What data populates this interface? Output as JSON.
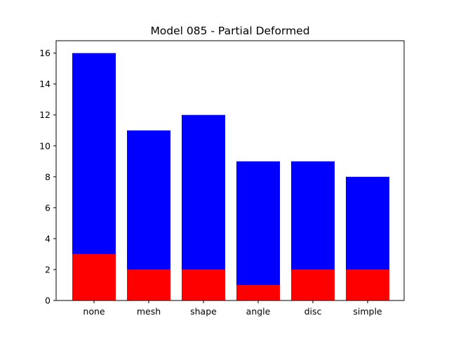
{
  "chart_data": {
    "type": "bar",
    "stacked": true,
    "title": "Model 085 - Partial Deformed",
    "xlabel": "",
    "ylabel": "",
    "categories": [
      "none",
      "mesh",
      "shape",
      "angle",
      "disc",
      "simple"
    ],
    "series": [
      {
        "values": [
          3,
          2,
          2,
          1,
          2,
          2
        ],
        "color": "#ff0000"
      },
      {
        "values": [
          13,
          9,
          10,
          8,
          7,
          6
        ],
        "color": "#0000ff"
      }
    ],
    "totals": [
      16,
      11,
      12,
      9,
      9,
      8
    ],
    "ylim": [
      0,
      16.8
    ],
    "yticks": [
      0,
      2,
      4,
      6,
      8,
      10,
      12,
      14,
      16
    ],
    "grid": false,
    "legend": "none"
  }
}
